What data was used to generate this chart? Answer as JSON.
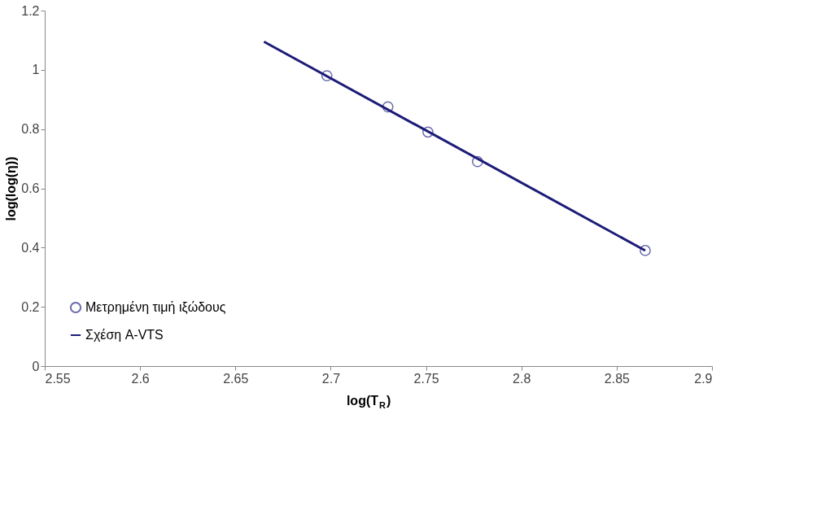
{
  "chart_data": {
    "type": "scatter",
    "xlabel": "log(T$_{R}$)",
    "ylabel": "log(log(η))",
    "xlim": [
      2.55,
      2.9
    ],
    "xticks": [
      2.55,
      2.6,
      2.65,
      2.7,
      2.75,
      2.8,
      2.85,
      2.9
    ],
    "ylim": [
      0,
      1.2
    ],
    "yticks": [
      0,
      0.2,
      0.4,
      0.6,
      0.8,
      1,
      1.2
    ],
    "grid": false,
    "legend": "bottom left",
    "series": [
      {
        "name": "Μετρημένη τιμή ιξώδους",
        "marker": "circle",
        "color": "#2e2e8c",
        "x": [
          2.698,
          2.73,
          2.751,
          2.777,
          2.865
        ],
        "values": [
          0.98,
          0.875,
          0.79,
          0.69,
          0.39
        ]
      },
      {
        "name": "Σχέση A-VTS",
        "type": "line",
        "line_style": "solid",
        "color": "#1c1c78",
        "x": [
          2.665,
          2.865
        ],
        "values": [
          1.095,
          0.39
        ]
      }
    ]
  }
}
